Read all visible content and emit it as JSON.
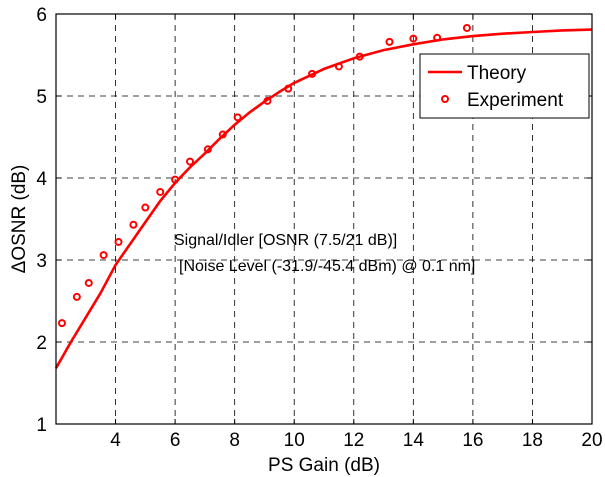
{
  "chart_data": {
    "type": "line",
    "xlabel": "PS Gain (dB)",
    "ylabel": "ΔOSNR (dB)",
    "xlim": [
      2,
      20
    ],
    "ylim": [
      1,
      6
    ],
    "xticks": [
      4,
      6,
      8,
      10,
      12,
      14,
      16,
      18,
      20
    ],
    "xtick_labels": [
      "4",
      "6",
      "8",
      "10",
      "12",
      "14",
      "16",
      "18",
      "20"
    ],
    "yticks": [
      1,
      2,
      3,
      4,
      5,
      6
    ],
    "ytick_labels": [
      "1",
      "2",
      "3",
      "4",
      "5",
      "6"
    ],
    "grid": true,
    "legend_position": "top-right",
    "annotations": [
      "Signal/Idler [OSNR (7.5/21 dB)]",
      "[Noise Level (-31.9/-45.4 dBm) @ 0.1 nm]"
    ],
    "series": [
      {
        "name": "Theory",
        "type": "line",
        "color": "#ff0000",
        "x": [
          2.0,
          2.5,
          3.0,
          3.5,
          4.0,
          4.5,
          5.0,
          5.5,
          6.0,
          6.5,
          7.0,
          7.5,
          8.0,
          8.5,
          9.0,
          9.5,
          10.0,
          11.0,
          12.0,
          13.0,
          14.0,
          15.0,
          16.0,
          17.0,
          18.0,
          19.0,
          20.0
        ],
        "y": [
          1.68,
          2.0,
          2.3,
          2.6,
          2.94,
          3.2,
          3.46,
          3.72,
          3.94,
          4.13,
          4.3,
          4.48,
          4.65,
          4.8,
          4.93,
          5.05,
          5.16,
          5.33,
          5.46,
          5.56,
          5.63,
          5.69,
          5.73,
          5.76,
          5.78,
          5.8,
          5.81
        ]
      },
      {
        "name": "Experiment",
        "type": "scatter",
        "color": "#ff0000",
        "x": [
          2.2,
          2.7,
          3.1,
          3.6,
          4.1,
          4.6,
          5.0,
          5.5,
          6.0,
          6.5,
          7.1,
          7.6,
          8.1,
          9.1,
          9.8,
          10.6,
          11.5,
          12.2,
          13.2,
          14.0,
          14.8,
          15.8
        ],
        "y": [
          2.23,
          2.55,
          2.72,
          3.06,
          3.22,
          3.43,
          3.64,
          3.83,
          3.98,
          4.2,
          4.35,
          4.53,
          4.74,
          4.94,
          5.09,
          5.27,
          5.36,
          5.48,
          5.66,
          5.7,
          5.71,
          5.83
        ]
      }
    ]
  }
}
